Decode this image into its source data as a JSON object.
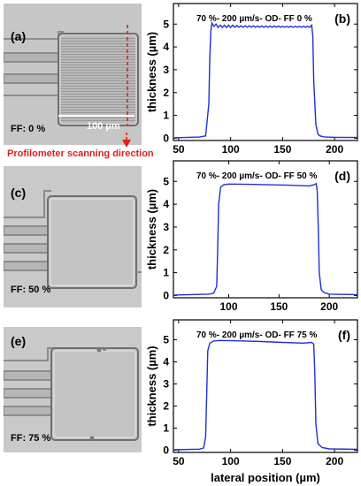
{
  "micrographs": [
    {
      "label": "(a)",
      "ff_text": "FF: 0 %",
      "scale_text": "100 µm",
      "scan_text": "Profilometer scanning direction"
    },
    {
      "label": "(c)",
      "ff_text": "FF: 50 %"
    },
    {
      "label": "(e)",
      "ff_text": "FF: 75 %"
    }
  ],
  "colors": {
    "trace": "#1f2fd6",
    "scan_arrow": "#e0201b",
    "axes": "#000000"
  },
  "chart_data": [
    {
      "type": "line",
      "panel_label": "(b)",
      "title": "70 %- 200 µm/s- OD- FF 0 %",
      "ylabel": "thickness (µm)",
      "xlim": [
        45,
        222
      ],
      "ylim": [
        -0.1,
        5.9
      ],
      "xticks": [
        50,
        100,
        150,
        200
      ],
      "yticks": [
        0,
        1,
        2,
        3,
        4,
        5
      ],
      "series": [
        {
          "x": [
            45,
            70,
            76,
            79,
            80,
            81,
            82,
            84,
            86,
            88,
            90,
            92,
            94,
            96,
            98,
            100,
            102,
            104,
            106,
            108,
            110,
            112,
            114,
            116,
            118,
            120,
            122,
            124,
            126,
            128,
            130,
            132,
            134,
            136,
            138,
            140,
            142,
            144,
            146,
            148,
            150,
            152,
            154,
            156,
            158,
            160,
            162,
            164,
            166,
            168,
            170,
            172,
            174,
            176,
            178,
            179,
            180,
            182,
            184,
            186,
            190,
            200,
            222
          ],
          "y": [
            0.02,
            0.05,
            0.1,
            1.5,
            3.5,
            4.7,
            5.05,
            4.9,
            5.0,
            4.85,
            4.95,
            4.85,
            4.95,
            4.85,
            4.95,
            4.85,
            4.95,
            4.86,
            4.94,
            4.86,
            4.93,
            4.86,
            4.93,
            4.86,
            4.93,
            4.86,
            4.93,
            4.86,
            4.92,
            4.86,
            4.92,
            4.86,
            4.92,
            4.86,
            4.92,
            4.86,
            4.92,
            4.86,
            4.92,
            4.86,
            4.9,
            4.86,
            4.9,
            4.86,
            4.9,
            4.86,
            4.9,
            4.86,
            4.9,
            4.86,
            4.9,
            4.86,
            4.9,
            4.86,
            4.95,
            4.5,
            2.5,
            0.6,
            0.18,
            0.1,
            0.06,
            0.04,
            0.03
          ]
        }
      ]
    },
    {
      "type": "line",
      "panel_label": "(d)",
      "title": "70 %- 200 µm/s- OD- FF 50 %",
      "ylabel": "thickness (µm)",
      "xlim": [
        45,
        228
      ],
      "ylim": [
        -0.1,
        5.9
      ],
      "xticks": [
        100,
        150,
        200
      ],
      "yticks": [
        0,
        1,
        2,
        3,
        4,
        5
      ],
      "series": [
        {
          "x": [
            45,
            80,
            85,
            88,
            89,
            90,
            92,
            95,
            100,
            120,
            140,
            160,
            180,
            185,
            187,
            188,
            189,
            190,
            192,
            195,
            200,
            228
          ],
          "y": [
            0.02,
            0.06,
            0.1,
            0.4,
            2.0,
            4.0,
            4.75,
            4.85,
            4.88,
            4.87,
            4.85,
            4.83,
            4.8,
            4.85,
            4.9,
            4.6,
            3.0,
            1.0,
            0.25,
            0.12,
            0.06,
            0.04
          ]
        }
      ]
    },
    {
      "type": "line",
      "panel_label": "(f)",
      "title": "70 %- 200 µm/s- OD- FF 75 %",
      "xlabel": "lateral position (µm)",
      "ylabel": "thickness (µm)",
      "xlim": [
        45,
        222
      ],
      "ylim": [
        -0.1,
        5.9
      ],
      "xticks": [
        50,
        100,
        150,
        200
      ],
      "yticks": [
        0,
        1,
        2,
        3,
        4,
        5
      ],
      "series": [
        {
          "x": [
            45,
            70,
            74,
            76,
            77,
            78,
            80,
            84,
            90,
            110,
            130,
            150,
            170,
            178,
            180,
            181,
            182,
            184,
            188,
            195,
            222
          ],
          "y": [
            0.02,
            0.05,
            0.1,
            0.6,
            2.5,
            4.5,
            4.85,
            4.95,
            4.97,
            4.95,
            4.92,
            4.88,
            4.85,
            4.88,
            4.8,
            3.5,
            1.2,
            0.3,
            0.12,
            0.06,
            0.04
          ]
        }
      ]
    }
  ]
}
